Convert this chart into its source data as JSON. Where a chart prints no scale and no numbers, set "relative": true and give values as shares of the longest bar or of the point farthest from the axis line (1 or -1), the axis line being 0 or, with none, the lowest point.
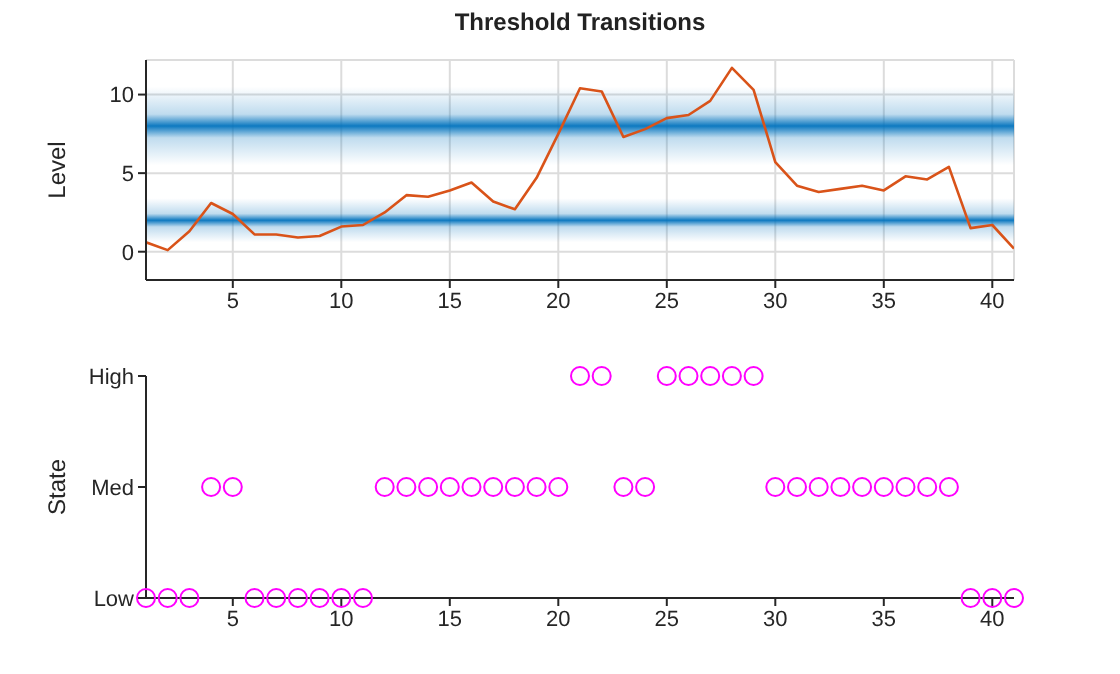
{
  "chart_data": [
    {
      "type": "line",
      "title": "Threshold Transitions",
      "ylabel": "Level",
      "x": [
        1,
        2,
        3,
        4,
        5,
        6,
        7,
        8,
        9,
        10,
        11,
        12,
        13,
        14,
        15,
        16,
        17,
        18,
        19,
        20,
        21,
        22,
        23,
        24,
        25,
        26,
        27,
        28,
        29,
        30,
        31,
        32,
        33,
        34,
        35,
        36,
        37,
        38,
        39,
        40,
        41
      ],
      "series": [
        {
          "color": "#d95319",
          "values": [
            0.6,
            0.1,
            1.3,
            3.1,
            2.4,
            1.1,
            1.1,
            0.9,
            1.0,
            1.6,
            1.7,
            2.5,
            3.6,
            3.5,
            3.9,
            4.4,
            3.2,
            2.7,
            4.7,
            7.5,
            10.4,
            10.2,
            7.3,
            7.8,
            8.5,
            8.7,
            9.6,
            11.7,
            10.3,
            5.7,
            4.2,
            3.8,
            4.0,
            4.2,
            3.9,
            4.8,
            4.6,
            5.4,
            1.5,
            1.7,
            0.2
          ]
        }
      ],
      "bands": [
        {
          "axis": "y",
          "from": 0.6,
          "to": 3.4,
          "color": "#0072bd"
        },
        {
          "axis": "y",
          "from": 5.5,
          "to": 10.5,
          "color": "#0072bd"
        }
      ],
      "xlim": [
        1,
        41
      ],
      "xticks": [
        5,
        10,
        15,
        20,
        25,
        30,
        35,
        40
      ],
      "ylim": [
        -1.8,
        12.2
      ],
      "yticks": [
        0,
        5,
        10
      ],
      "grid": true,
      "marker": "none",
      "line_style": "solid"
    },
    {
      "type": "scatter",
      "ylabel": "State",
      "x": [
        1,
        2,
        3,
        4,
        5,
        6,
        7,
        8,
        9,
        10,
        11,
        12,
        13,
        14,
        15,
        16,
        17,
        18,
        19,
        20,
        21,
        22,
        23,
        24,
        25,
        26,
        27,
        28,
        29,
        30,
        31,
        32,
        33,
        34,
        35,
        36,
        37,
        38,
        39,
        40,
        41
      ],
      "relative": true,
      "series": [
        {
          "color": "#ff00ff",
          "values": [
            0,
            0,
            0,
            0.5,
            0.5,
            0,
            0,
            0,
            0,
            0,
            0,
            0.5,
            0.5,
            0.5,
            0.5,
            0.5,
            0.5,
            0.5,
            0.5,
            0.5,
            1,
            1,
            0.5,
            0.5,
            1,
            1,
            1,
            1,
            1,
            0.5,
            0.5,
            0.5,
            0.5,
            0.5,
            0.5,
            0.5,
            0.5,
            0.5,
            0,
            0,
            0
          ]
        }
      ],
      "y_categories": [
        "High",
        "Med",
        "Low"
      ],
      "xlim": [
        1,
        41
      ],
      "xticks": [
        5,
        10,
        15,
        20,
        25,
        30,
        35,
        40
      ],
      "marker": "circle"
    }
  ]
}
